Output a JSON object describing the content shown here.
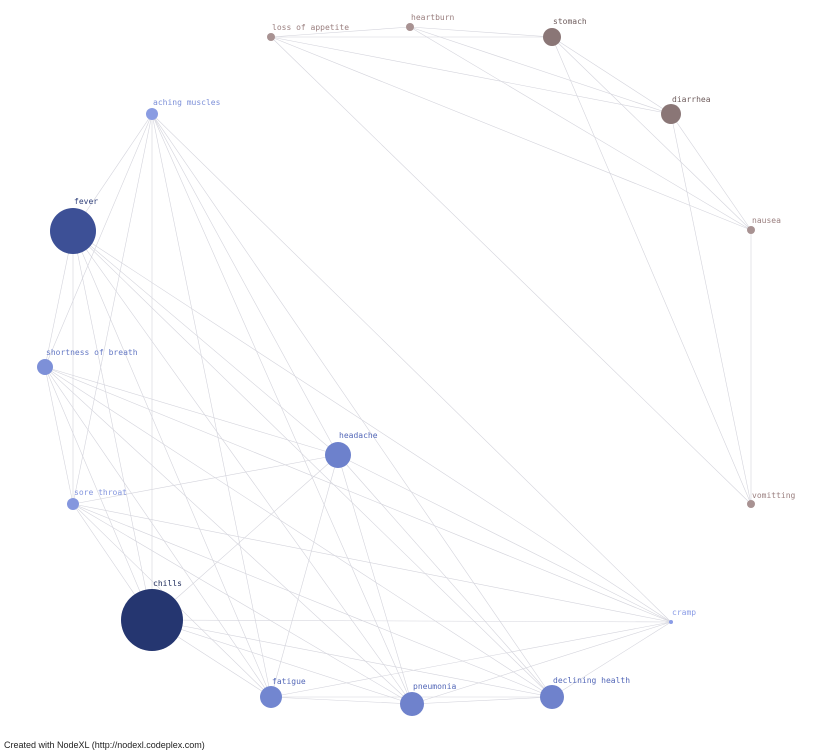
{
  "nodes": [
    {
      "label": "loss of appetite"
    },
    {
      "label": "heartburn"
    },
    {
      "label": "stomach"
    },
    {
      "label": "diarrhea"
    },
    {
      "label": "nausea"
    },
    {
      "label": "vomitting"
    },
    {
      "label": "cramp"
    },
    {
      "label": "declining health"
    },
    {
      "label": "pneumonia"
    },
    {
      "label": "fatigue"
    },
    {
      "label": "chills"
    },
    {
      "label": "sore throat"
    },
    {
      "label": "shortness of breath"
    },
    {
      "label": "fever"
    },
    {
      "label": "headache"
    },
    {
      "label": "aching muscles"
    }
  ],
  "footer": "Created with NodeXL (http://nodexl.codeplex.com)"
}
